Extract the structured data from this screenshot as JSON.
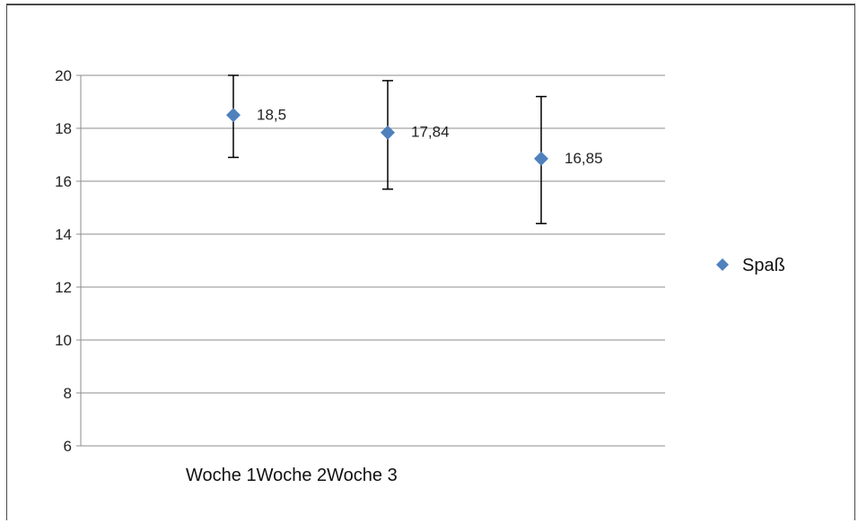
{
  "chart_data": {
    "type": "scatter",
    "categories": [
      "Woche 1",
      "Woche 2",
      "Woche 3"
    ],
    "series": [
      {
        "name": "Spaß",
        "values": [
          18.5,
          17.84,
          16.85
        ],
        "labels": [
          "18,5",
          "17,84",
          "16,85"
        ],
        "error_low": [
          16.9,
          15.7,
          14.4
        ],
        "error_high": [
          20.0,
          19.8,
          19.2
        ]
      }
    ],
    "xlabel": "",
    "ylabel": "",
    "ylim": [
      6,
      20
    ],
    "yticks": [
      6,
      8,
      10,
      12,
      14,
      16,
      18,
      20
    ],
    "grid": true,
    "legend": "right",
    "marker_color": "#4f81bd"
  }
}
